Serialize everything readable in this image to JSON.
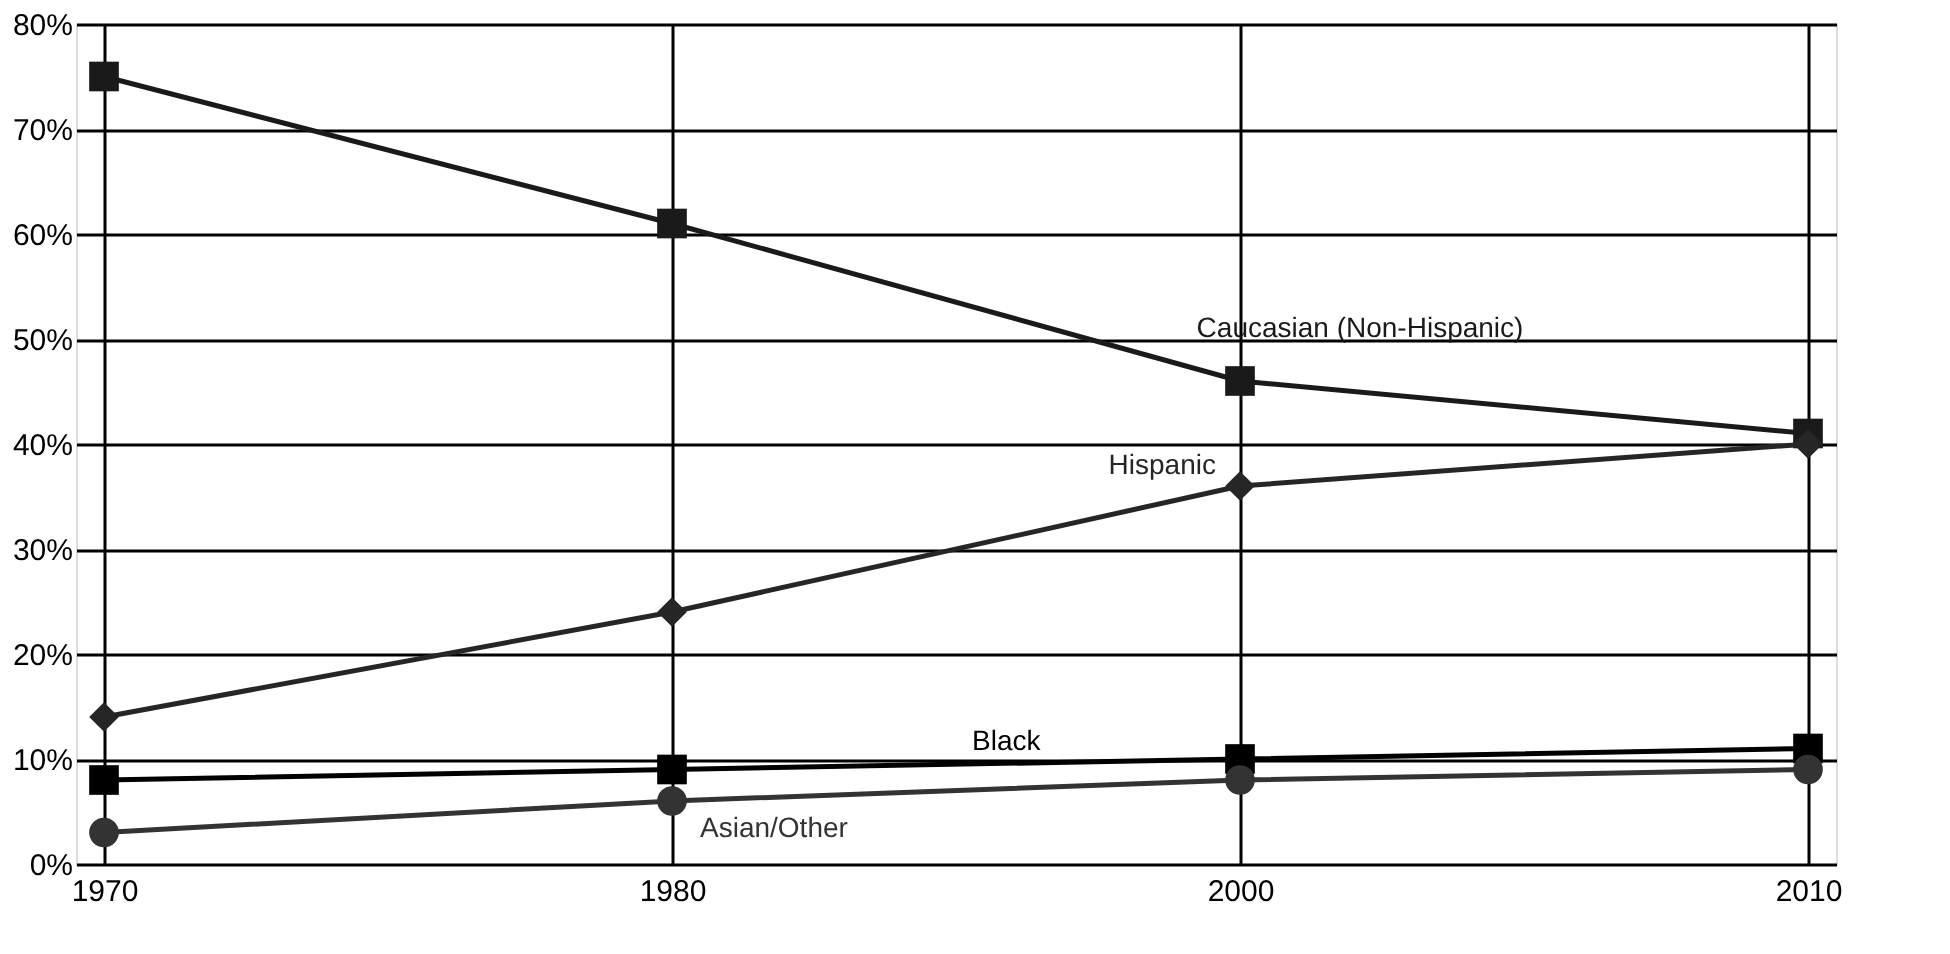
{
  "chart_data": {
    "type": "line",
    "categories": [
      "1970",
      "1980",
      "2000",
      "2010"
    ],
    "ylim": [
      0,
      80
    ],
    "yticks": [
      {
        "value": 0,
        "label": "0%"
      },
      {
        "value": 10,
        "label": "10%"
      },
      {
        "value": 20,
        "label": "20%"
      },
      {
        "value": 30,
        "label": "30%"
      },
      {
        "value": 40,
        "label": "40%"
      },
      {
        "value": 50,
        "label": "50%"
      },
      {
        "value": 60,
        "label": "60%"
      },
      {
        "value": 70,
        "label": "70%"
      },
      {
        "value": 80,
        "label": "80%"
      }
    ],
    "grid": true,
    "line_style": "solid",
    "series": [
      {
        "name": "Caucasian (Non-Hispanic)",
        "color": "#1a1a1a",
        "marker": "square",
        "values": [
          75,
          61,
          46,
          41
        ]
      },
      {
        "name": "Hispanic",
        "color": "#262626",
        "marker": "diamond",
        "values": [
          14,
          24,
          36,
          40
        ]
      },
      {
        "name": "Black",
        "color": "#000000",
        "marker": "square",
        "values": [
          8,
          9,
          10,
          11
        ]
      },
      {
        "name": "Asian/Other",
        "color": "#333333",
        "marker": "circle",
        "values": [
          3,
          6,
          8,
          9
        ]
      }
    ]
  }
}
